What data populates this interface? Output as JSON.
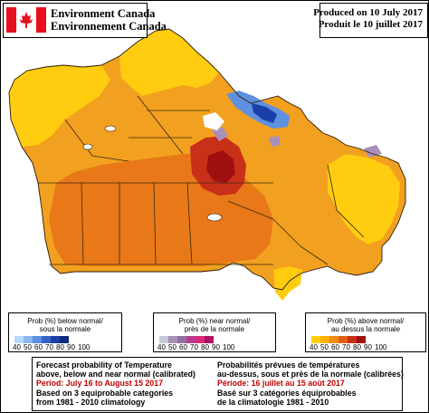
{
  "header": {
    "agency_en": "Environment Canada",
    "agency_fr": "Environnement Canada",
    "produced_en": "Produced on 10 July 2017",
    "produced_fr": "Produit le 10 juillet 2017"
  },
  "colors": {
    "flag_red": "#e8101c",
    "period_red": "#c00000",
    "ocean": "#ffffff",
    "land_bg": "#e5e5e5"
  },
  "legends": [
    {
      "title_en": "Prob (%) below normal/",
      "title_fr": "sous la normale",
      "ticks": [
        "40",
        "50",
        "60",
        "70",
        "80",
        "90",
        "100"
      ],
      "colors": [
        "#b8d8ff",
        "#8cb8f0",
        "#5e90e0",
        "#3464c8",
        "#1a40a8",
        "#0e2a80"
      ]
    },
    {
      "title_en": "Prob (%) near normal/",
      "title_fr": "près de la normale",
      "ticks": [
        "40",
        "50",
        "60",
        "70",
        "80",
        "90",
        "100"
      ],
      "colors": [
        "#c8c8d8",
        "#a890b8",
        "#9070a0",
        "#b83a8c",
        "#d82a78",
        "#b01060"
      ]
    },
    {
      "title_en": "Prob (%) above normal/",
      "title_fr": "au dessus la normale",
      "ticks": [
        "40",
        "50",
        "60",
        "70",
        "80",
        "90",
        "100"
      ],
      "colors": [
        "#ffd000",
        "#ffb000",
        "#f08a10",
        "#e06018",
        "#c83018",
        "#a01010"
      ]
    }
  ],
  "info": {
    "en": {
      "line1": "Forecast probability of Temperature",
      "line2": "above, below and near normal (calibrated)",
      "period": "Period: July 16 to August 15 2017",
      "line3": "Based on 3 equiprobable categories",
      "line4": "from 1981 - 2010 climatology"
    },
    "fr": {
      "line1": "Probabilités prévues de températures",
      "line2": "au-dessus, sous et près de la normale (calibrées)",
      "period": "Période: 16 juillet au 15 août 2017",
      "line3": "Basé sur 3 catégories équiprobables",
      "line4": "de la climatologie 1981 - 2010"
    }
  }
}
